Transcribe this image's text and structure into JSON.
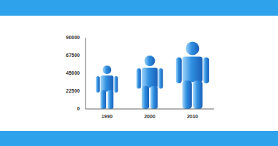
{
  "chart_data": {
    "type": "bar",
    "categories": [
      "1990",
      "2000",
      "2010"
    ],
    "values": [
      55000,
      67500,
      85000
    ],
    "color": "#2f8fe0",
    "ylim": [
      0,
      90000
    ],
    "yticks": [
      0,
      22500,
      45000,
      67500,
      90000
    ],
    "grid": false,
    "marker": "person"
  }
}
